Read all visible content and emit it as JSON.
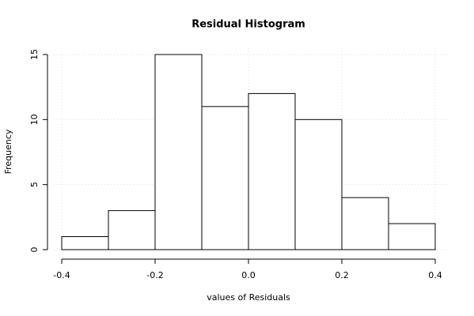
{
  "chart_data": {
    "type": "histogram",
    "title": "Residual Histogram",
    "x_label": "values of Residuals",
    "y_label": "Frequency",
    "bins": [
      -0.4,
      -0.3,
      -0.2,
      -0.1,
      0,
      0.1,
      0.2,
      0.3,
      0.4
    ],
    "values": [
      1,
      3,
      15,
      11,
      12,
      10,
      4,
      2
    ],
    "color": "#ffffff",
    "xlim": [
      -0.4,
      0.4
    ],
    "xticks": [
      -0.4,
      -0.2,
      {
        "value": 0,
        "label": "0.0"
      },
      0.2,
      0.4
    ],
    "ylim": [
      0,
      15
    ],
    "yticks": [
      0,
      5,
      10,
      15
    ],
    "grid": true
  }
}
